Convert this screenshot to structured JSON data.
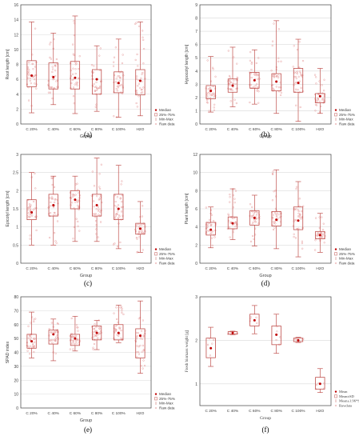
{
  "colors": {
    "box": "#c0504d",
    "mean": "#c00000",
    "points": "#e8a0a0",
    "grid": "#d9d9d9",
    "axis": "#404040"
  },
  "chart_data": [
    {
      "panel": "(a)",
      "type": "box",
      "ylabel": "Root length [cm]",
      "xlabel": "Group",
      "ylim": [
        0,
        16
      ],
      "yticks": [
        0,
        2,
        4,
        6,
        8,
        10,
        12,
        14,
        16
      ],
      "categories": [
        "C 20%",
        "C 40%",
        "C 60%",
        "C 80%",
        "C 100%",
        "H2O"
      ],
      "boxes": [
        {
          "min": 1.5,
          "q1": 5.0,
          "median": 6.5,
          "q3": 8.5,
          "max": 13.7
        },
        {
          "min": 2.6,
          "q1": 4.7,
          "median": 6.3,
          "q3": 8.2,
          "max": 12.2
        },
        {
          "min": 1.4,
          "q1": 4.7,
          "median": 6.2,
          "q3": 8.4,
          "max": 14.5
        },
        {
          "min": 1.7,
          "q1": 4.0,
          "median": 6.0,
          "q3": 7.3,
          "max": 10.5
        },
        {
          "min": 0.9,
          "q1": 4.2,
          "median": 5.5,
          "q3": 7.0,
          "max": 11.4
        },
        {
          "min": 1.1,
          "q1": 3.9,
          "median": 5.8,
          "q3": 7.3,
          "max": 13.7
        }
      ],
      "legend": [
        "Median",
        "25%-75%",
        "Min-Max",
        "Raw data"
      ]
    },
    {
      "panel": "(b)",
      "type": "box",
      "ylabel": "Hypocotyl length [cm]",
      "xlabel": "Group",
      "ylim": [
        0,
        9
      ],
      "yticks": [
        0,
        1,
        2,
        3,
        4,
        5,
        6,
        7,
        8,
        9
      ],
      "categories": [
        "C 20%",
        "C 40%",
        "C 60%",
        "C 80%",
        "C 100%",
        "H2O"
      ],
      "boxes": [
        {
          "min": 0.9,
          "q1": 1.9,
          "median": 2.5,
          "q3": 2.9,
          "max": 5.1
        },
        {
          "min": 1.3,
          "q1": 2.4,
          "median": 2.9,
          "q3": 3.4,
          "max": 5.8
        },
        {
          "min": 1.5,
          "q1": 2.7,
          "median": 3.3,
          "q3": 3.9,
          "max": 5.6
        },
        {
          "min": 0.8,
          "q1": 2.5,
          "median": 3.2,
          "q3": 3.8,
          "max": 7.8
        },
        {
          "min": 0.2,
          "q1": 2.4,
          "median": 3.1,
          "q3": 4.2,
          "max": 6.4
        },
        {
          "min": 0.8,
          "q1": 1.6,
          "median": 2.1,
          "q3": 2.3,
          "max": 4.2
        }
      ],
      "legend": [
        "Median",
        "25%-75%",
        "Min-Max",
        "Raw data"
      ]
    },
    {
      "panel": "(c)",
      "type": "box",
      "ylabel": "Epicotyl length [cm]",
      "xlabel": "Group",
      "ylim": [
        0,
        3
      ],
      "yticks": [
        0,
        0.5,
        1,
        1.5,
        2,
        2.5,
        3
      ],
      "categories": [
        "C 20%",
        "C 40%",
        "C 60%",
        "C 80%",
        "C 100%",
        "H2O"
      ],
      "boxes": [
        {
          "min": 0.5,
          "q1": 1.2,
          "median": 1.4,
          "q3": 1.75,
          "max": 2.5
        },
        {
          "min": 0.5,
          "q1": 1.3,
          "median": 1.6,
          "q3": 1.9,
          "max": 2.4
        },
        {
          "min": 0.6,
          "q1": 1.5,
          "median": 1.75,
          "q3": 2.0,
          "max": 2.4
        },
        {
          "min": 0.6,
          "q1": 1.3,
          "median": 1.6,
          "q3": 1.9,
          "max": 2.9
        },
        {
          "min": 0.4,
          "q1": 1.2,
          "median": 1.5,
          "q3": 1.9,
          "max": 2.7
        },
        {
          "min": 0.3,
          "q1": 0.8,
          "median": 0.95,
          "q3": 1.1,
          "max": 1.7
        }
      ],
      "legend": [
        "Median",
        "25%-75%",
        "Min-Max",
        "Raw data"
      ]
    },
    {
      "panel": "(d)",
      "type": "box",
      "ylabel": "Plant length [cm]",
      "xlabel": "Group",
      "ylim": [
        0,
        12
      ],
      "yticks": [
        0,
        2,
        4,
        6,
        8,
        10,
        12
      ],
      "categories": [
        "C 20%",
        "C 40%",
        "C 60%",
        "C 80%",
        "C 100%",
        "H2O"
      ],
      "boxes": [
        {
          "min": 1.7,
          "q1": 3.1,
          "median": 3.7,
          "q3": 4.5,
          "max": 6.2
        },
        {
          "min": 2.6,
          "q1": 3.8,
          "median": 4.4,
          "q3": 5.1,
          "max": 8.2
        },
        {
          "min": 1.9,
          "q1": 4.2,
          "median": 5.0,
          "q3": 5.8,
          "max": 7.5
        },
        {
          "min": 1.6,
          "q1": 4.1,
          "median": 4.8,
          "q3": 5.7,
          "max": 10.3
        },
        {
          "min": 0.7,
          "q1": 3.7,
          "median": 4.7,
          "q3": 6.2,
          "max": 9.0
        },
        {
          "min": 1.2,
          "q1": 2.7,
          "median": 3.1,
          "q3": 3.5,
          "max": 5.5
        }
      ],
      "legend": [
        "Median",
        "25%-75%",
        "Min-Max",
        "Raw data"
      ]
    },
    {
      "panel": "(e)",
      "type": "box",
      "ylabel": "SPAD index",
      "xlabel": "Group",
      "ylim": [
        0,
        80
      ],
      "yticks": [
        0,
        10,
        20,
        30,
        40,
        50,
        60,
        70,
        80
      ],
      "categories": [
        "C 20%",
        "C 40%",
        "C 60%",
        "C 80%",
        "C 100%",
        "H2O"
      ],
      "boxes": [
        {
          "min": 36,
          "q1": 43,
          "median": 48,
          "q3": 53,
          "max": 69
        },
        {
          "min": 34,
          "q1": 46,
          "median": 53,
          "q3": 56,
          "max": 64
        },
        {
          "min": 41,
          "q1": 45,
          "median": 50,
          "q3": 53,
          "max": 66
        },
        {
          "min": 42,
          "q1": 49,
          "median": 54,
          "q3": 59,
          "max": 63
        },
        {
          "min": 47,
          "q1": 49,
          "median": 54,
          "q3": 60,
          "max": 74
        },
        {
          "min": 25,
          "q1": 36,
          "median": 52,
          "q3": 57,
          "max": 77
        }
      ],
      "legend": [
        "Median",
        "25%-75%",
        "Min-Max",
        "Raw data"
      ]
    },
    {
      "panel": "(f)",
      "type": "box",
      "ylabel": "Fresh biomass weight [g]",
      "xlabel": "Group",
      "ylim": [
        0.5,
        3
      ],
      "yticks": [
        1,
        2,
        3
      ],
      "categories": [
        "C 20%",
        "C 40%",
        "C 60%",
        "C 80%",
        "C 100%",
        "H2O"
      ],
      "boxes": [
        {
          "min": 1.4,
          "mean": 1.82,
          "q1": 1.6,
          "q3": 2.05,
          "max": 2.3
        },
        {
          "min": 2.13,
          "mean": 2.17,
          "q1": 2.14,
          "q3": 2.2,
          "max": 2.21
        },
        {
          "min": 2.15,
          "mean": 2.46,
          "q1": 2.33,
          "q3": 2.6,
          "max": 2.8
        },
        {
          "min": 1.7,
          "mean": 2.13,
          "q1": 1.9,
          "q3": 2.33,
          "max": 2.6
        },
        {
          "min": 1.95,
          "mean": 2.0,
          "q1": 1.97,
          "q3": 2.05,
          "max": 2.07
        },
        {
          "min": 0.8,
          "mean": 1.0,
          "q1": 0.88,
          "q3": 1.15,
          "max": 1.35
        }
      ],
      "legend": [
        "Mean",
        "Mean±SD",
        "Mean±1.96*SD",
        "Rawdata"
      ]
    }
  ]
}
